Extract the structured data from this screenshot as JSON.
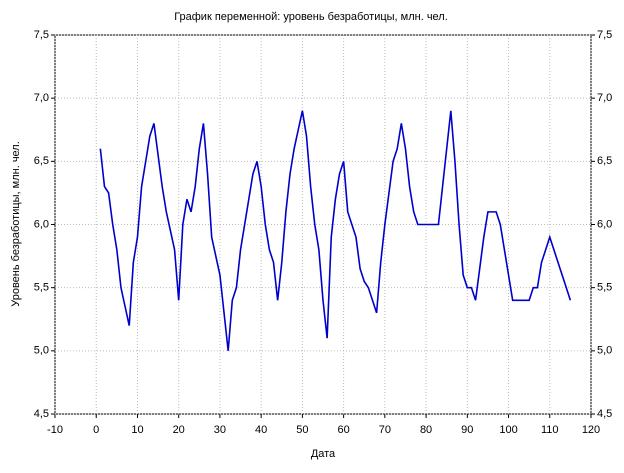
{
  "chart_data": {
    "type": "line",
    "title": "График переменной: уровень безработицы, млн. чел.",
    "x_label": "Дата",
    "y_label": "Уровень безработицы, млн. чел.",
    "x": [
      1,
      2,
      3,
      4,
      5,
      6,
      7,
      8,
      9,
      10,
      11,
      12,
      13,
      14,
      15,
      16,
      17,
      18,
      19,
      20,
      21,
      22,
      23,
      24,
      25,
      26,
      27,
      28,
      29,
      30,
      31,
      32,
      33,
      34,
      35,
      36,
      37,
      38,
      39,
      40,
      41,
      42,
      43,
      44,
      45,
      46,
      47,
      48,
      49,
      50,
      51,
      52,
      53,
      54,
      55,
      56,
      57,
      58,
      59,
      60,
      61,
      62,
      63,
      64,
      65,
      66,
      67,
      68,
      69,
      70,
      71,
      72,
      73,
      74,
      75,
      76,
      77,
      78,
      79,
      80,
      81,
      82,
      83,
      84,
      85,
      86,
      87,
      88,
      89,
      90,
      91,
      92,
      93,
      94,
      95,
      96,
      97,
      98,
      99,
      100,
      101,
      102,
      103,
      104,
      105,
      106,
      107,
      108,
      109,
      110,
      111,
      112,
      113,
      114,
      115
    ],
    "series": [
      {
        "color": "#0000cc",
        "values": [
          6.6,
          6.3,
          6.25,
          6.0,
          5.8,
          5.5,
          5.35,
          5.2,
          5.7,
          5.9,
          6.3,
          6.5,
          6.7,
          6.8,
          6.55,
          6.3,
          6.1,
          5.95,
          5.8,
          5.4,
          6.0,
          6.2,
          6.1,
          6.3,
          6.6,
          6.8,
          6.4,
          5.9,
          5.75,
          5.6,
          5.3,
          5.0,
          5.4,
          5.5,
          5.8,
          6.0,
          6.2,
          6.4,
          6.5,
          6.3,
          6.0,
          5.8,
          5.7,
          5.4,
          5.7,
          6.1,
          6.4,
          6.6,
          6.75,
          6.9,
          6.7,
          6.3,
          6.0,
          5.8,
          5.4,
          5.1,
          5.9,
          6.2,
          6.4,
          6.5,
          6.1,
          6.0,
          5.9,
          5.65,
          5.55,
          5.5,
          5.4,
          5.3,
          5.7,
          6.0,
          6.25,
          6.5,
          6.6,
          6.8,
          6.6,
          6.3,
          6.1,
          6.0,
          6.0,
          6.0,
          6.0,
          6.0,
          6.0,
          6.3,
          6.6,
          6.9,
          6.5,
          6.0,
          5.6,
          5.5,
          5.5,
          5.4,
          5.65,
          5.9,
          6.1,
          6.1,
          6.1,
          6.0,
          5.8,
          5.6,
          5.4,
          5.4,
          5.4,
          5.4,
          5.4,
          5.5,
          5.5,
          5.7,
          5.8,
          5.9,
          5.8,
          5.7,
          5.6,
          5.5,
          5.4
        ]
      }
    ],
    "xlim": [
      -10,
      120
    ],
    "xticks": [
      -10,
      0,
      10,
      20,
      30,
      40,
      50,
      60,
      70,
      80,
      90,
      100,
      110,
      120
    ],
    "ylim": [
      4.5,
      7.5
    ],
    "yticks": [
      {
        "value": 4.5,
        "label": "4,5"
      },
      {
        "value": 5.0,
        "label": "5,0"
      },
      {
        "value": 5.5,
        "label": "5,5"
      },
      {
        "value": 6.0,
        "label": "6,0"
      },
      {
        "value": 6.5,
        "label": "6,5"
      },
      {
        "value": 7.0,
        "label": "7,0"
      },
      {
        "value": 7.5,
        "label": "7,5"
      }
    ],
    "y2lim": [
      4.5,
      7.5
    ],
    "y2ticks": [
      {
        "value": 4.5,
        "label": "4,5"
      },
      {
        "value": 5.0,
        "label": "5,0"
      },
      {
        "value": 5.5,
        "label": "5,5"
      },
      {
        "value": 6.0,
        "label": "6,0"
      },
      {
        "value": 6.5,
        "label": "6,5"
      },
      {
        "value": 7.0,
        "label": "7,0"
      },
      {
        "value": 7.5,
        "label": "7,5"
      }
    ],
    "grid": true
  }
}
